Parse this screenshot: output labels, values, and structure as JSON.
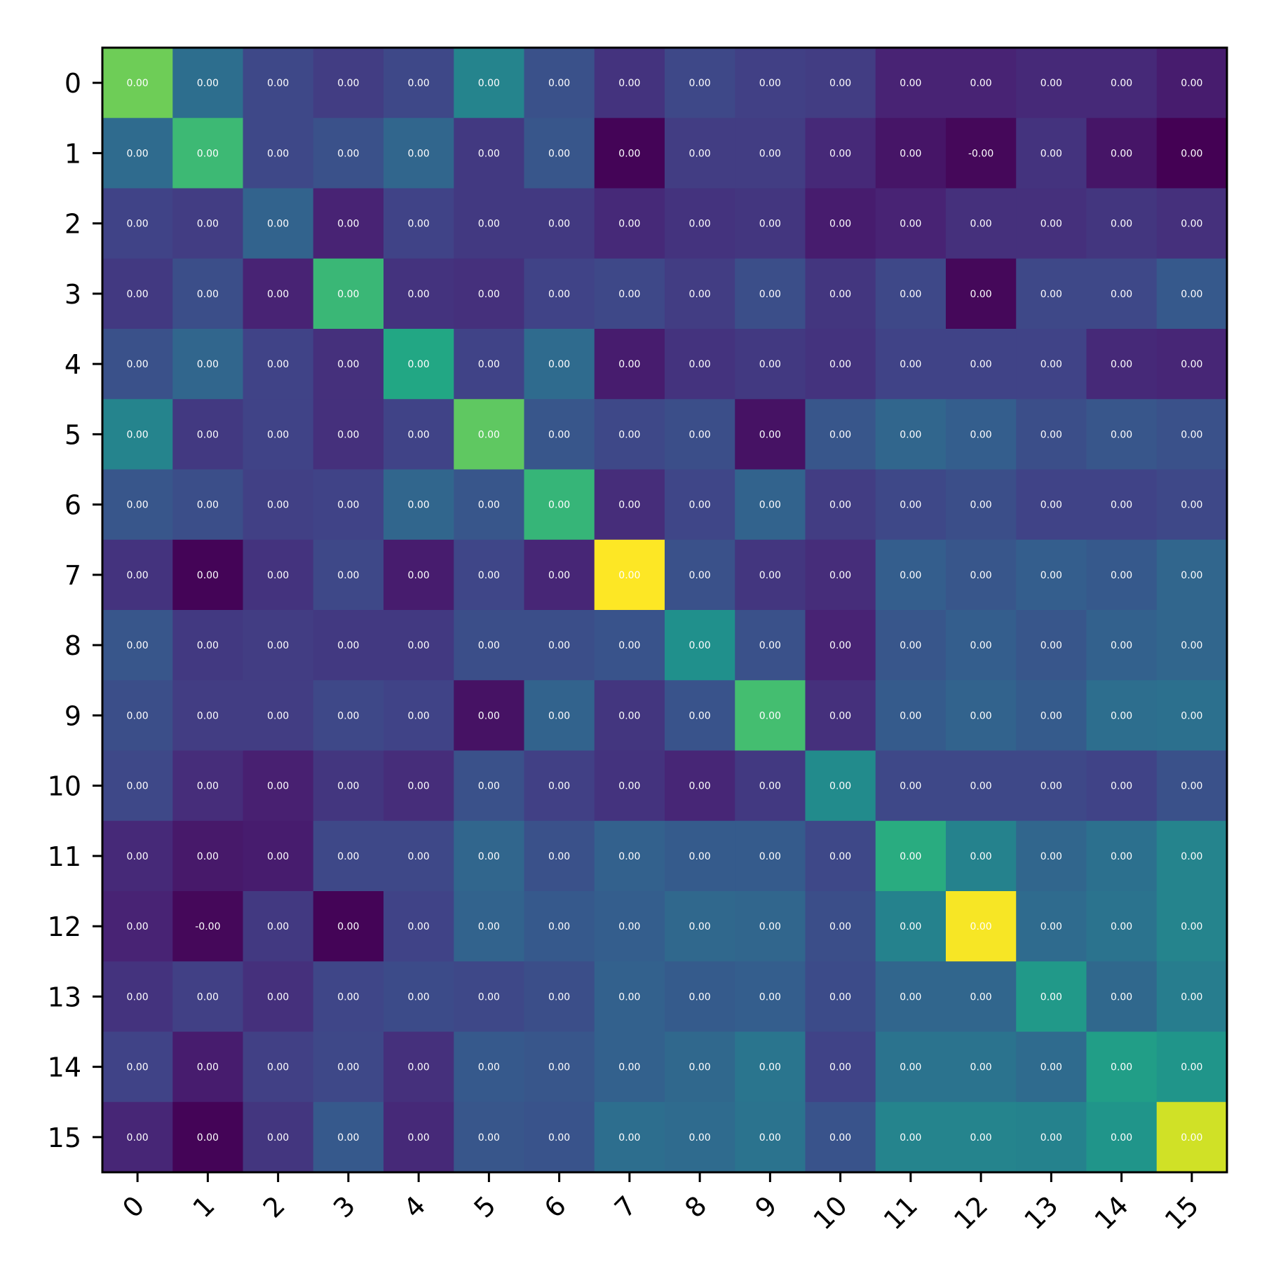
{
  "chart_data": {
    "type": "heatmap",
    "title": "",
    "xlabel": "",
    "ylabel": "",
    "colormap": "viridis",
    "grid": false,
    "x_ticks": [
      "0",
      "1",
      "2",
      "3",
      "4",
      "5",
      "6",
      "7",
      "8",
      "9",
      "10",
      "11",
      "12",
      "13",
      "14",
      "15"
    ],
    "y_ticks": [
      "0",
      "1",
      "2",
      "3",
      "4",
      "5",
      "6",
      "7",
      "8",
      "9",
      "10",
      "11",
      "12",
      "13",
      "14",
      "15"
    ],
    "color_level": [
      [
        0.78,
        0.36,
        0.22,
        0.18,
        0.22,
        0.45,
        0.25,
        0.15,
        0.22,
        0.19,
        0.18,
        0.1,
        0.1,
        0.12,
        0.12,
        0.08
      ],
      [
        0.35,
        0.68,
        0.22,
        0.25,
        0.33,
        0.17,
        0.27,
        0.01,
        0.18,
        0.18,
        0.12,
        0.06,
        0.02,
        0.15,
        0.06,
        0.0
      ],
      [
        0.2,
        0.18,
        0.32,
        0.1,
        0.2,
        0.17,
        0.17,
        0.12,
        0.15,
        0.16,
        0.08,
        0.1,
        0.14,
        0.14,
        0.16,
        0.14
      ],
      [
        0.17,
        0.24,
        0.1,
        0.67,
        0.15,
        0.14,
        0.2,
        0.22,
        0.18,
        0.24,
        0.16,
        0.22,
        0.02,
        0.22,
        0.22,
        0.28
      ],
      [
        0.25,
        0.33,
        0.2,
        0.14,
        0.6,
        0.2,
        0.35,
        0.08,
        0.15,
        0.17,
        0.15,
        0.2,
        0.2,
        0.2,
        0.12,
        0.11
      ],
      [
        0.45,
        0.17,
        0.2,
        0.14,
        0.2,
        0.75,
        0.27,
        0.22,
        0.24,
        0.05,
        0.27,
        0.33,
        0.3,
        0.24,
        0.27,
        0.25
      ],
      [
        0.27,
        0.24,
        0.19,
        0.2,
        0.33,
        0.27,
        0.66,
        0.13,
        0.21,
        0.32,
        0.18,
        0.22,
        0.24,
        0.2,
        0.2,
        0.22
      ],
      [
        0.15,
        0.01,
        0.15,
        0.22,
        0.08,
        0.21,
        0.11,
        1.0,
        0.25,
        0.16,
        0.13,
        0.3,
        0.27,
        0.3,
        0.28,
        0.33
      ],
      [
        0.27,
        0.17,
        0.18,
        0.17,
        0.17,
        0.24,
        0.24,
        0.26,
        0.5,
        0.25,
        0.1,
        0.27,
        0.3,
        0.27,
        0.31,
        0.33
      ],
      [
        0.24,
        0.18,
        0.18,
        0.22,
        0.2,
        0.05,
        0.32,
        0.16,
        0.26,
        0.7,
        0.14,
        0.29,
        0.32,
        0.29,
        0.36,
        0.37
      ],
      [
        0.22,
        0.13,
        0.09,
        0.16,
        0.13,
        0.25,
        0.19,
        0.15,
        0.11,
        0.17,
        0.48,
        0.22,
        0.22,
        0.22,
        0.2,
        0.25
      ],
      [
        0.12,
        0.07,
        0.08,
        0.22,
        0.22,
        0.33,
        0.25,
        0.31,
        0.29,
        0.29,
        0.22,
        0.62,
        0.44,
        0.33,
        0.37,
        0.45
      ],
      [
        0.1,
        0.02,
        0.17,
        0.01,
        0.2,
        0.32,
        0.28,
        0.3,
        0.34,
        0.33,
        0.24,
        0.44,
        0.99,
        0.35,
        0.38,
        0.45
      ],
      [
        0.15,
        0.19,
        0.14,
        0.21,
        0.23,
        0.22,
        0.24,
        0.31,
        0.29,
        0.3,
        0.23,
        0.33,
        0.33,
        0.54,
        0.34,
        0.42
      ],
      [
        0.2,
        0.08,
        0.19,
        0.22,
        0.14,
        0.28,
        0.27,
        0.31,
        0.34,
        0.39,
        0.2,
        0.38,
        0.38,
        0.35,
        0.56,
        0.52
      ],
      [
        0.11,
        0.01,
        0.16,
        0.28,
        0.12,
        0.27,
        0.26,
        0.36,
        0.35,
        0.38,
        0.26,
        0.45,
        0.45,
        0.44,
        0.52,
        0.93
      ]
    ],
    "cell_labels": [
      [
        "0.00",
        "0.00",
        "0.00",
        "0.00",
        "0.00",
        "0.00",
        "0.00",
        "0.00",
        "0.00",
        "0.00",
        "0.00",
        "0.00",
        "0.00",
        "0.00",
        "0.00",
        "0.00"
      ],
      [
        "0.00",
        "0.00",
        "0.00",
        "0.00",
        "0.00",
        "0.00",
        "0.00",
        "0.00",
        "0.00",
        "0.00",
        "0.00",
        "0.00",
        "-0.00",
        "0.00",
        "0.00",
        "0.00"
      ],
      [
        "0.00",
        "0.00",
        "0.00",
        "0.00",
        "0.00",
        "0.00",
        "0.00",
        "0.00",
        "0.00",
        "0.00",
        "0.00",
        "0.00",
        "0.00",
        "0.00",
        "0.00",
        "0.00"
      ],
      [
        "0.00",
        "0.00",
        "0.00",
        "0.00",
        "0.00",
        "0.00",
        "0.00",
        "0.00",
        "0.00",
        "0.00",
        "0.00",
        "0.00",
        "0.00",
        "0.00",
        "0.00",
        "0.00"
      ],
      [
        "0.00",
        "0.00",
        "0.00",
        "0.00",
        "0.00",
        "0.00",
        "0.00",
        "0.00",
        "0.00",
        "0.00",
        "0.00",
        "0.00",
        "0.00",
        "0.00",
        "0.00",
        "0.00"
      ],
      [
        "0.00",
        "0.00",
        "0.00",
        "0.00",
        "0.00",
        "0.00",
        "0.00",
        "0.00",
        "0.00",
        "0.00",
        "0.00",
        "0.00",
        "0.00",
        "0.00",
        "0.00",
        "0.00"
      ],
      [
        "0.00",
        "0.00",
        "0.00",
        "0.00",
        "0.00",
        "0.00",
        "0.00",
        "0.00",
        "0.00",
        "0.00",
        "0.00",
        "0.00",
        "0.00",
        "0.00",
        "0.00",
        "0.00"
      ],
      [
        "0.00",
        "0.00",
        "0.00",
        "0.00",
        "0.00",
        "0.00",
        "0.00",
        "0.00",
        "0.00",
        "0.00",
        "0.00",
        "0.00",
        "0.00",
        "0.00",
        "0.00",
        "0.00"
      ],
      [
        "0.00",
        "0.00",
        "0.00",
        "0.00",
        "0.00",
        "0.00",
        "0.00",
        "0.00",
        "0.00",
        "0.00",
        "0.00",
        "0.00",
        "0.00",
        "0.00",
        "0.00",
        "0.00"
      ],
      [
        "0.00",
        "0.00",
        "0.00",
        "0.00",
        "0.00",
        "0.00",
        "0.00",
        "0.00",
        "0.00",
        "0.00",
        "0.00",
        "0.00",
        "0.00",
        "0.00",
        "0.00",
        "0.00"
      ],
      [
        "0.00",
        "0.00",
        "0.00",
        "0.00",
        "0.00",
        "0.00",
        "0.00",
        "0.00",
        "0.00",
        "0.00",
        "0.00",
        "0.00",
        "0.00",
        "0.00",
        "0.00",
        "0.00"
      ],
      [
        "0.00",
        "0.00",
        "0.00",
        "0.00",
        "0.00",
        "0.00",
        "0.00",
        "0.00",
        "0.00",
        "0.00",
        "0.00",
        "0.00",
        "0.00",
        "0.00",
        "0.00",
        "0.00"
      ],
      [
        "0.00",
        "-0.00",
        "0.00",
        "0.00",
        "0.00",
        "0.00",
        "0.00",
        "0.00",
        "0.00",
        "0.00",
        "0.00",
        "0.00",
        "0.00",
        "0.00",
        "0.00",
        "0.00"
      ],
      [
        "0.00",
        "0.00",
        "0.00",
        "0.00",
        "0.00",
        "0.00",
        "0.00",
        "0.00",
        "0.00",
        "0.00",
        "0.00",
        "0.00",
        "0.00",
        "0.00",
        "0.00",
        "0.00"
      ],
      [
        "0.00",
        "0.00",
        "0.00",
        "0.00",
        "0.00",
        "0.00",
        "0.00",
        "0.00",
        "0.00",
        "0.00",
        "0.00",
        "0.00",
        "0.00",
        "0.00",
        "0.00",
        "0.00"
      ],
      [
        "0.00",
        "0.00",
        "0.00",
        "0.00",
        "0.00",
        "0.00",
        "0.00",
        "0.00",
        "0.00",
        "0.00",
        "0.00",
        "0.00",
        "0.00",
        "0.00",
        "0.00",
        "0.00"
      ]
    ]
  }
}
